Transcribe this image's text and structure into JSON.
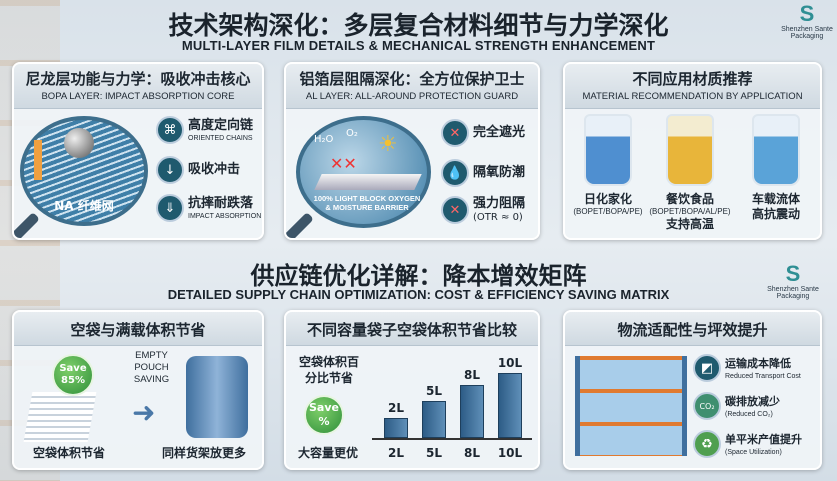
{
  "header": {
    "title": "技术架构深化：多层复合材料细节与力学深化",
    "subtitle": "MULTI-LAYER FILM DETAILS & MECHANICAL STRENGTH ENHANCEMENT",
    "logo_text": "Shenzhen Sante Packaging"
  },
  "panel1": {
    "title": "尼龙层功能与力学：吸收冲击核心",
    "subtitle": "BOPA LAYER: IMPACT ABSORPTION CORE",
    "magnifier_label": "NA 纤维网",
    "features": [
      {
        "cn": "高度定向链",
        "en": "ORIENTED CHAINS",
        "icon": "chain-network-icon"
      },
      {
        "cn": "吸收冲击",
        "en": "",
        "icon": "impact-arrow-icon"
      },
      {
        "cn": "抗摔耐跌落",
        "en": "IMPACT ABSORPTION",
        "icon": "drop-arrow-icon"
      }
    ]
  },
  "panel2": {
    "title": "铝箔层阻隔深化：全方位保护卫士",
    "subtitle": "AL LAYER: ALL-AROUND PROTECTION GUARD",
    "magnifier_label": "100% LIGHT BLOCK OXYGEN & MOISTURE BARRIER",
    "molecules": [
      "H₂O",
      "O₂"
    ],
    "features": [
      {
        "cn": "完全遮光",
        "en": "",
        "icon": "light-block-icon"
      },
      {
        "cn": "隔氧防潮",
        "en": "",
        "icon": "droplet-icon"
      },
      {
        "cn": "强力阻隔",
        "en": "(OTR ≈ 0)",
        "icon": "barrier-icon"
      }
    ]
  },
  "panel3": {
    "title": "不同应用材质推荐",
    "subtitle": "MATERIAL RECOMMENDATION BY APPLICATION",
    "items": [
      {
        "cn": "日化家化",
        "spec": "(BOPET/BOPA/PE)",
        "cn2": "",
        "color": "#4f8fd0"
      },
      {
        "cn": "餐饮食品",
        "spec": "(BOPET/BOPA/AL/PE)",
        "cn2": "支持高温",
        "color": "#e8b53a"
      },
      {
        "cn": "车载流体",
        "spec": "",
        "cn2": "高抗震动",
        "color": "#5aa3d8"
      }
    ]
  },
  "section2": {
    "title": "供应链优化详解：降本增效矩阵",
    "subtitle": "DETAILED SUPPLY CHAIN OPTIMIZATION: COST & EFFICIENCY SAVING MATRIX",
    "logo_text": "Shenzhen Sante Packaging"
  },
  "panel4": {
    "title": "空袋与满载体积节省",
    "badge": "Save 85%",
    "arrow_label": "EMPTY POUCH SAVING",
    "left_caption": "空袋体积节省",
    "right_caption": "同样货架放更多"
  },
  "panel5": {
    "title": "不同容量袋子空袋体积节省比较",
    "label": "空袋体积百分比节省",
    "badge_top": "Save",
    "badge_bottom": "%",
    "footer_label": "大容量更优",
    "bars": [
      {
        "label": "2L",
        "level": 0.23
      },
      {
        "label": "5L",
        "level": 0.43
      },
      {
        "label": "8L",
        "level": 0.62
      },
      {
        "label": "10L",
        "level": 0.77
      }
    ]
  },
  "panel6": {
    "title": "物流适配性与坪效提升",
    "features": [
      {
        "cn": "运输成本降低",
        "en": "Reduced Transport Cost",
        "icon": "transport-cost-icon"
      },
      {
        "cn": "碳排放减少",
        "en": "(Reduced CO₂)",
        "icon": "co2-icon"
      },
      {
        "cn": "单平米产值提升",
        "en": "(Space Utilization)",
        "icon": "recycle-icon"
      }
    ]
  }
}
